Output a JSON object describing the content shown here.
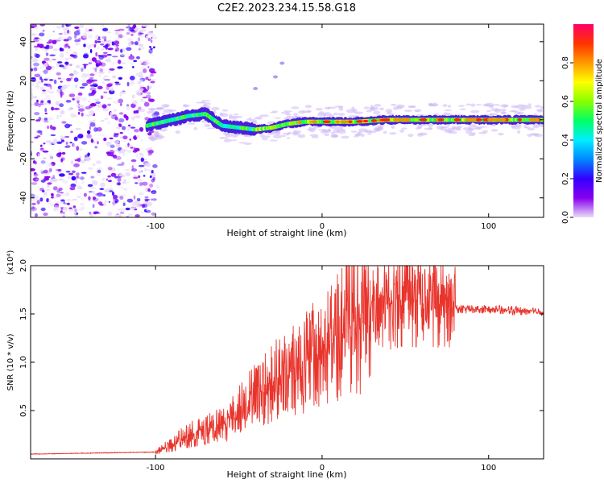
{
  "title": "C2E2.2023.234.15.58.G18",
  "chart_data": [
    {
      "type": "heatmap",
      "title": "C2E2.2023.234.15.58.G18",
      "xlabel": "Height of straight line (km)",
      "ylabel": "Frequency (Hz)",
      "xlim": [
        -175,
        133
      ],
      "ylim": [
        -50,
        49
      ],
      "xticks": [
        -100,
        0,
        100
      ],
      "yticks": [
        -40,
        -20,
        0,
        20,
        40
      ],
      "colorbar": {
        "label": "Normalized spectral amplitude",
        "range": [
          0,
          1
        ],
        "ticks": [
          0.0,
          0.2,
          0.4,
          0.6,
          0.8
        ],
        "tick_labels": [
          "0.0",
          "0.2",
          "0.4",
          "0.6",
          "0.8"
        ],
        "colormap": [
          "#e8dcf8",
          "#8800ee",
          "#3300ff",
          "#0088ff",
          "#00eeff",
          "#00ff66",
          "#88ff00",
          "#ffff00",
          "#ff9900",
          "#ff3300",
          "#ff0066"
        ]
      },
      "features": {
        "noise_region_x": [
          -175,
          -100
        ],
        "ridge": {
          "description": "dominant spectral line near 0 Hz",
          "x": [
            -105,
            -90,
            -80,
            -70,
            -60,
            -50,
            -40,
            -30,
            -20,
            -10,
            0,
            20,
            40,
            60,
            80,
            100,
            133
          ],
          "freq": [
            -3,
            0,
            2,
            3,
            -3,
            -4,
            -5,
            -4,
            -2,
            -1,
            -1,
            -1,
            0,
            0,
            0,
            0,
            0
          ]
        }
      }
    },
    {
      "type": "line",
      "xlabel": "Height of straight line (km)",
      "ylabel": "SNR (10 * v/v)",
      "multiplier": "(x10⁴)",
      "xlim": [
        -175,
        133
      ],
      "ylim": [
        0,
        20000
      ],
      "xticks": [
        -100,
        0,
        100
      ],
      "yticks": [
        5000,
        10000,
        15000,
        20000
      ],
      "ytick_labels": [
        "0.5",
        "1.0",
        "1.5",
        "2.0"
      ],
      "color": "#e8342c",
      "envelope": {
        "x": [
          -175,
          -100,
          -90,
          -80,
          -70,
          -60,
          -50,
          -40,
          -30,
          -20,
          -10,
          0,
          10,
          20,
          30,
          40,
          50,
          60,
          70,
          80,
          90,
          100,
          110,
          120,
          133
        ],
        "y": [
          500,
          700,
          1500,
          2500,
          3000,
          3500,
          5000,
          6500,
          8000,
          9000,
          10000,
          11000,
          12500,
          14500,
          15500,
          16000,
          16500,
          16500,
          16000,
          15500,
          15500,
          15500,
          15400,
          15300,
          15200
        ]
      }
    }
  ]
}
